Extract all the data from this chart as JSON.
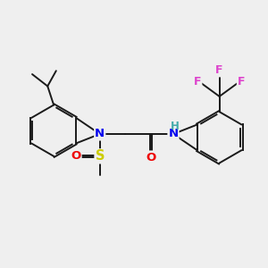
{
  "background_color": "#efefef",
  "bond_color": "#1a1a1a",
  "atom_colors": {
    "N": "#0000ee",
    "O": "#ee0000",
    "S": "#cccc00",
    "F": "#dd44cc",
    "H": "#44aaaa",
    "C": "#1a1a1a"
  },
  "figsize": [
    3.0,
    3.0
  ],
  "dpi": 100
}
